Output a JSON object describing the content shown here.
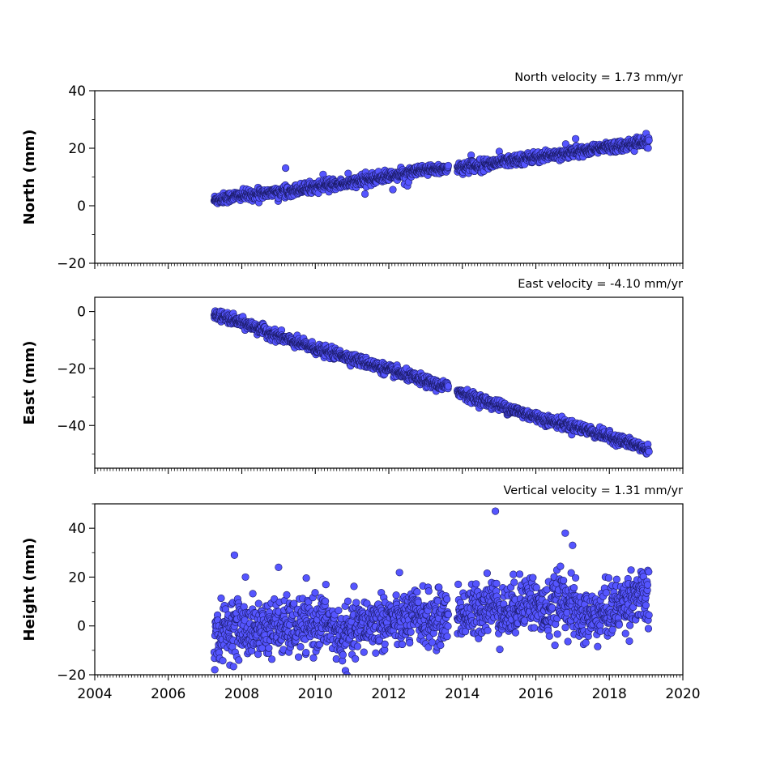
{
  "chart_data": [
    {
      "type": "scatter",
      "title": "North velocity = 1.73 mm/yr",
      "xlabel": "",
      "ylabel": "North (mm)",
      "xlim": [
        2004,
        2020
      ],
      "ylim": [
        -20,
        40
      ],
      "xticks": [
        "2004",
        "2006",
        "2008",
        "2010",
        "2012",
        "2014",
        "2016",
        "2018",
        "2020"
      ],
      "yticks": [
        -20,
        0,
        20,
        40
      ],
      "ytick_labels": [
        "−20",
        "0",
        "20",
        "40"
      ],
      "x_tick_labels_visible": false,
      "grid": false,
      "marker_color": "#5555ff",
      "series": [
        {
          "x": [
            2007.25,
            2007.75,
            2008.25,
            2008.75,
            2009.25,
            2009.75,
            2010.25,
            2010.75,
            2011.25,
            2011.75,
            2012.25,
            2012.75,
            2013.25,
            2013.75,
            2014.25,
            2014.75,
            2015.25,
            2015.75,
            2016.25,
            2016.75,
            2017.25,
            2017.75,
            2018.25,
            2018.75,
            2019.0
          ],
          "y": [
            2.0,
            3.2,
            3.8,
            4.5,
            5.2,
            6.2,
            7.0,
            7.6,
            8.6,
            9.8,
            10.8,
            11.9,
            12.6,
            13.2,
            13.8,
            14.6,
            15.6,
            16.5,
            17.3,
            18.2,
            19.1,
            20.0,
            20.8,
            21.8,
            22.2
          ]
        }
      ]
    },
    {
      "type": "scatter",
      "title": "East velocity = -4.10 mm/yr",
      "xlabel": "",
      "ylabel": "East (mm)",
      "xlim": [
        2004,
        2020
      ],
      "ylim": [
        -55,
        5
      ],
      "xticks": [
        "2004",
        "2006",
        "2008",
        "2010",
        "2012",
        "2014",
        "2016",
        "2018",
        "2020"
      ],
      "yticks": [
        -40,
        -20,
        0
      ],
      "ytick_labels": [
        "−40",
        "−20",
        "0"
      ],
      "x_tick_labels_visible": false,
      "grid": false,
      "marker_color": "#5555ff",
      "series": [
        {
          "x": [
            2007.25,
            2007.75,
            2008.25,
            2008.75,
            2009.25,
            2009.75,
            2010.25,
            2010.75,
            2011.25,
            2011.75,
            2012.25,
            2012.75,
            2013.25,
            2013.75,
            2014.25,
            2014.75,
            2015.25,
            2015.75,
            2016.25,
            2016.75,
            2017.25,
            2017.75,
            2018.25,
            2018.75,
            2019.0
          ],
          "y": [
            -1.0,
            -3.0,
            -5.0,
            -7.5,
            -10.0,
            -12.0,
            -14.0,
            -15.5,
            -17.5,
            -19.5,
            -21.5,
            -23.5,
            -25.5,
            -27.0,
            -30.0,
            -32.0,
            -34.0,
            -36.0,
            -38.0,
            -39.5,
            -41.0,
            -43.0,
            -45.0,
            -47.0,
            -48.5
          ]
        }
      ]
    },
    {
      "type": "scatter",
      "title": "Vertical velocity = 1.31 mm/yr",
      "xlabel": "",
      "ylabel": "Height (mm)",
      "xlim": [
        2004,
        2020
      ],
      "ylim": [
        -20,
        50
      ],
      "xticks": [
        "2004",
        "2006",
        "2008",
        "2010",
        "2012",
        "2014",
        "2016",
        "2018",
        "2020"
      ],
      "yticks": [
        -20,
        0,
        20,
        40
      ],
      "ytick_labels": [
        "−20",
        "0",
        "20",
        "40"
      ],
      "x_tick_labels_visible": true,
      "grid": false,
      "marker_color": "#5555ff",
      "series": [
        {
          "x": [
            2007.25,
            2007.75,
            2008.25,
            2008.75,
            2009.25,
            2009.75,
            2010.25,
            2010.75,
            2011.25,
            2011.75,
            2012.25,
            2012.75,
            2013.25,
            2013.75,
            2014.25,
            2014.75,
            2015.25,
            2015.75,
            2016.25,
            2016.75,
            2017.25,
            2017.75,
            2018.25,
            2018.75,
            2019.0,
            2007.8,
            2008.1,
            2009.0,
            2014.9,
            2016.8,
            2017.0
          ],
          "y": [
            -5.0,
            0.0,
            -2.0,
            0.0,
            -1.0,
            0.0,
            2.0,
            -5.0,
            0.0,
            2.0,
            2.0,
            4.0,
            2.0,
            5.0,
            5.0,
            10.0,
            5.0,
            12.0,
            5.0,
            12.0,
            3.0,
            5.0,
            8.0,
            13.0,
            10.0,
            29.0,
            20.0,
            24.0,
            47.0,
            38.0,
            33.0
          ]
        }
      ]
    }
  ]
}
